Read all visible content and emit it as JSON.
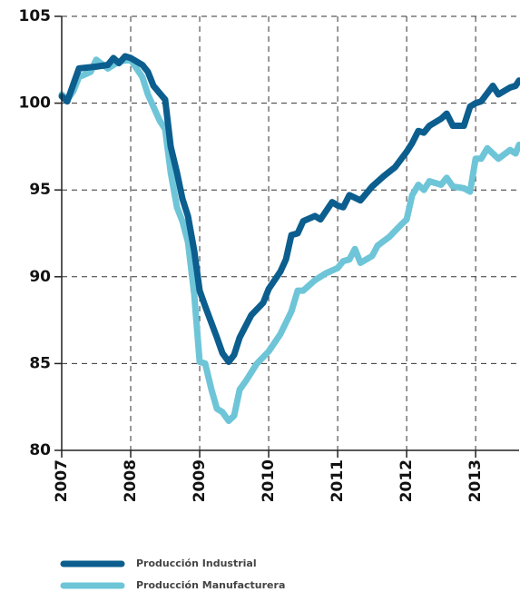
{
  "chart_data": {
    "type": "line",
    "xlim": [
      2007,
      2013.63
    ],
    "xticks": [
      2007,
      2008,
      2009,
      2010,
      2011,
      2012,
      2013
    ],
    "ylim": [
      80,
      105
    ],
    "yticks": [
      80,
      85,
      90,
      95,
      100,
      105
    ],
    "grid": true,
    "series": [
      {
        "name": "Producción Industrial",
        "color": "#0b5e8e",
        "x": [
          2007.0,
          2007.08,
          2007.17,
          2007.25,
          2007.5,
          2007.67,
          2007.75,
          2007.83,
          2007.92,
          2008.0,
          2008.17,
          2008.25,
          2008.33,
          2008.5,
          2008.58,
          2008.67,
          2008.75,
          2008.83,
          2008.92,
          2009.0,
          2009.08,
          2009.25,
          2009.33,
          2009.42,
          2009.5,
          2009.58,
          2009.75,
          2009.92,
          2010.0,
          2010.17,
          2010.25,
          2010.33,
          2010.42,
          2010.5,
          2010.67,
          2010.75,
          2010.92,
          2011.0,
          2011.08,
          2011.17,
          2011.33,
          2011.5,
          2011.67,
          2011.83,
          2012.0,
          2012.08,
          2012.17,
          2012.25,
          2012.33,
          2012.5,
          2012.58,
          2012.67,
          2012.83,
          2012.92,
          2013.0,
          2013.08,
          2013.25,
          2013.33,
          2013.5,
          2013.58,
          2013.63
        ],
        "values": [
          100.4,
          100.1,
          101.1,
          102.0,
          102.1,
          102.2,
          102.6,
          102.3,
          102.7,
          102.6,
          102.2,
          101.8,
          101.0,
          100.2,
          97.5,
          96.0,
          94.5,
          93.5,
          91.5,
          89.2,
          88.3,
          86.5,
          85.6,
          85.1,
          85.5,
          86.5,
          87.8,
          88.5,
          89.3,
          90.3,
          91.0,
          92.4,
          92.5,
          93.2,
          93.5,
          93.3,
          94.3,
          94.1,
          94.0,
          94.7,
          94.4,
          95.2,
          95.8,
          96.3,
          97.2,
          97.7,
          98.4,
          98.3,
          98.7,
          99.1,
          99.4,
          98.7,
          98.7,
          99.8,
          100.0,
          100.1,
          101.0,
          100.5,
          100.9,
          101.0,
          101.3
        ]
      },
      {
        "name": "Producción Manufacturera",
        "color": "#6ec5d8",
        "x": [
          2007.0,
          2007.08,
          2007.17,
          2007.25,
          2007.42,
          2007.5,
          2007.67,
          2007.83,
          2008.0,
          2008.17,
          2008.25,
          2008.42,
          2008.5,
          2008.58,
          2008.67,
          2008.75,
          2008.83,
          2008.92,
          2009.0,
          2009.08,
          2009.17,
          2009.25,
          2009.33,
          2009.42,
          2009.5,
          2009.58,
          2009.67,
          2009.83,
          2010.0,
          2010.17,
          2010.33,
          2010.42,
          2010.5,
          2010.67,
          2010.83,
          2011.0,
          2011.08,
          2011.17,
          2011.25,
          2011.33,
          2011.5,
          2011.58,
          2011.75,
          2011.92,
          2012.0,
          2012.08,
          2012.17,
          2012.25,
          2012.33,
          2012.5,
          2012.58,
          2012.67,
          2012.83,
          2012.92,
          2013.0,
          2013.08,
          2013.17,
          2013.33,
          2013.5,
          2013.58,
          2013.63
        ],
        "values": [
          100.5,
          100.2,
          100.7,
          101.5,
          101.8,
          102.5,
          102.0,
          102.4,
          102.5,
          101.5,
          100.5,
          99.0,
          98.5,
          96.0,
          94.0,
          93.2,
          92.0,
          89.0,
          85.1,
          85.0,
          83.5,
          82.4,
          82.2,
          81.7,
          82.0,
          83.5,
          84.0,
          85.0,
          85.7,
          86.7,
          88.0,
          89.2,
          89.2,
          89.8,
          90.2,
          90.5,
          90.9,
          91.0,
          91.6,
          90.8,
          91.2,
          91.8,
          92.3,
          93.0,
          93.3,
          94.7,
          95.3,
          95.0,
          95.5,
          95.3,
          95.7,
          95.2,
          95.1,
          94.9,
          96.8,
          96.8,
          97.4,
          96.8,
          97.3,
          97.1,
          97.6
        ]
      }
    ]
  }
}
